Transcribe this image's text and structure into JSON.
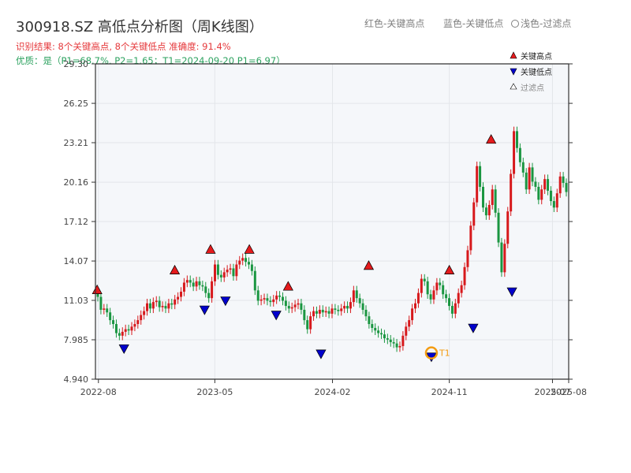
{
  "title": "300918.SZ 高低点分析图（周K线图）",
  "subtitle1": "识别结果: 8个关键高点, 8个关键低点  准确度: 91.4%",
  "subtitle2": "优质：是（P1=68.7%, P2=1.65；T1=2024-09-20 P1=6.97）",
  "top_legend": {
    "red": "红色-关键高点",
    "blue": "蓝色-关键低点",
    "light": "浅色-过滤点"
  },
  "legend": {
    "high": "关键高点",
    "low": "关键低点",
    "filtered": "过滤点"
  },
  "colors": {
    "up": "#d7191c",
    "down": "#1a9641",
    "high_marker": "#e41a1c",
    "low_marker": "#0000cc",
    "t1_marker": "#f39c12",
    "plot_bg": "#f5f7fa",
    "grid": "#e3e6ea"
  },
  "chart_data": {
    "type": "candlestick",
    "period": "weekly",
    "x_ticks": [
      "2022-08",
      "2023-05",
      "2024-02",
      "2024-11",
      "2025-07",
      "2025-08"
    ],
    "y_ticks": [
      4.94,
      7.985,
      11.03,
      14.07,
      17.12,
      20.16,
      23.21,
      26.25,
      29.3
    ],
    "y_tick_labels": [
      "4.940",
      "7.985",
      "11.03",
      "14.07",
      "17.12",
      "20.16",
      "23.21",
      "26.25",
      "29.30"
    ],
    "ylim": [
      4.94,
      29.3
    ],
    "xlim": [
      "2022-07-25",
      "2025-08-08"
    ],
    "grid": true,
    "legend_position": "top-right",
    "closes": [
      11.3,
      10.3,
      10.4,
      10.1,
      9.5,
      9.2,
      8.5,
      8.3,
      8.6,
      8.8,
      8.7,
      9,
      9.2,
      9.5,
      9.9,
      10.2,
      10.8,
      10.4,
      10.9,
      11,
      10.5,
      10.6,
      10.4,
      10.8,
      10.7,
      11.1,
      11.3,
      11.7,
      12.4,
      12.6,
      12.4,
      12.1,
      12.5,
      12.2,
      12.1,
      11.6,
      11.2,
      12.5,
      13.8,
      13,
      12.8,
      13.2,
      13.4,
      13.5,
      12.9,
      13.8,
      14.1,
      14.3,
      14,
      13.8,
      13.3,
      11.8,
      11,
      11.1,
      11.2,
      11,
      10.9,
      11.1,
      11.4,
      11.3,
      11.0,
      10.6,
      10.4,
      10.5,
      10.7,
      10.8,
      10.3,
      9.5,
      8.8,
      9.8,
      10.2,
      10.0,
      10.3,
      10.1,
      10.2,
      10.0,
      10.4,
      10.3,
      10.2,
      10.4,
      10.6,
      10.4,
      10.9,
      11.8,
      11.2,
      10.8,
      10.3,
      9.8,
      9.2,
      8.9,
      8.7,
      8.5,
      8.4,
      8.1,
      8.0,
      7.8,
      7.7,
      7.4,
      7.5,
      8.3,
      9.0,
      9.5,
      10.4,
      10.8,
      11.6,
      12.7,
      12.5,
      11.5,
      11.1,
      11.8,
      12.4,
      12.2,
      11.5,
      11.2,
      10.6,
      10.0,
      10.8,
      11.6,
      12.2,
      13.6,
      14.9,
      16.8,
      18.6,
      21.4,
      19.8,
      18.2,
      17.6,
      18.4,
      19.6,
      17.8,
      15.5,
      13.2,
      15.4,
      17.9,
      20.8,
      24.1,
      22.8,
      21.7,
      20.9,
      19.6,
      21.3,
      20.2,
      19.8,
      18.8,
      19.6,
      20.4,
      19.5,
      18.7,
      18.2,
      19.3,
      20.6,
      20.1,
      19.4
    ],
    "key_highs": [
      {
        "date": "2022-07-29",
        "price": 11.48
      },
      {
        "date": "2023-01-27",
        "price": 13.0
      },
      {
        "date": "2023-04-21",
        "price": 14.6
      },
      {
        "date": "2023-07-21",
        "price": 14.6
      },
      {
        "date": "2023-10-20",
        "price": 11.75
      },
      {
        "date": "2024-04-26",
        "price": 13.35
      },
      {
        "date": "2024-11-01",
        "price": 13.0
      },
      {
        "date": "2025-02-07",
        "price": 23.1
      }
    ],
    "key_lows": [
      {
        "date": "2022-09-30",
        "price": 7.6
      },
      {
        "date": "2023-04-07",
        "price": 10.6
      },
      {
        "date": "2023-05-26",
        "price": 11.3
      },
      {
        "date": "2023-09-22",
        "price": 10.2
      },
      {
        "date": "2024-01-05",
        "price": 7.2
      },
      {
        "date": "2024-09-20",
        "price": 6.97
      },
      {
        "date": "2024-12-27",
        "price": 9.2
      },
      {
        "date": "2025-03-28",
        "price": 12.0
      }
    ],
    "t1": {
      "label": "T1",
      "date": "2024-09-20",
      "price": 6.97
    }
  }
}
